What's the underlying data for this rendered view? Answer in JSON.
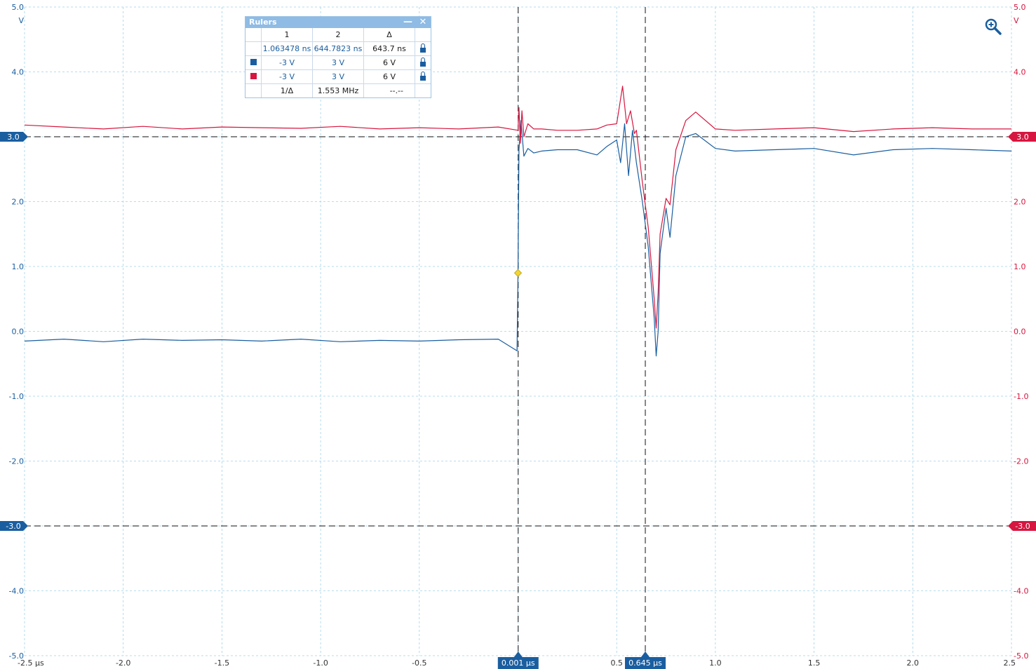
{
  "chart_data": {
    "type": "line",
    "title": "",
    "xlabel": "",
    "ylabel": "V",
    "ylabel_right": "V",
    "xlim": [
      -2.5,
      2.5
    ],
    "ylim": [
      -5.0,
      5.0
    ],
    "x_unit": "µs",
    "grid": true,
    "x_ticks": [
      "-2.5 µs",
      "-2.0",
      "-1.5",
      "-1.0",
      "-0.5",
      "0.5",
      "1.0",
      "1.5",
      "2.0",
      "2.5"
    ],
    "x_tick_values": [
      -2.5,
      -2.0,
      -1.5,
      -1.0,
      -0.5,
      0.5,
      1.0,
      1.5,
      2.0,
      2.5
    ],
    "y_ticks_left": [
      "5.0",
      "4.0",
      "3.0",
      "2.0",
      "1.0",
      "0.0",
      "-1.0",
      "-2.0",
      "-3.0",
      "-4.0",
      "-5.0"
    ],
    "y_ticks_right": [
      "5.0",
      "4.0",
      "3.0",
      "2.0",
      "1.0",
      "0.0",
      "-1.0",
      "-2.0",
      "-3.0",
      "-4.0",
      "-5.0"
    ],
    "y_tick_values": [
      5,
      4,
      3,
      2,
      1,
      0,
      -1,
      -2,
      -3,
      -4,
      -5
    ],
    "series": [
      {
        "color": "#1a5ea0",
        "x": [
          -2.5,
          -2.3,
          -2.1,
          -1.9,
          -1.7,
          -1.5,
          -1.3,
          -1.1,
          -0.9,
          -0.7,
          -0.5,
          -0.3,
          -0.1,
          -0.005,
          0.0,
          0.005,
          0.015,
          0.03,
          0.05,
          0.08,
          0.12,
          0.2,
          0.3,
          0.4,
          0.45,
          0.5,
          0.52,
          0.54,
          0.56,
          0.58,
          0.6,
          0.63,
          0.66,
          0.69,
          0.7,
          0.71,
          0.72,
          0.75,
          0.77,
          0.8,
          0.85,
          0.9,
          1.0,
          1.1,
          1.3,
          1.5,
          1.7,
          1.9,
          2.1,
          2.3,
          2.5
        ],
        "values": [
          -0.15,
          -0.12,
          -0.16,
          -0.12,
          -0.14,
          -0.13,
          -0.15,
          -0.12,
          -0.16,
          -0.14,
          -0.15,
          -0.13,
          -0.12,
          -0.3,
          0.9,
          2.8,
          3.25,
          2.7,
          2.82,
          2.75,
          2.78,
          2.8,
          2.8,
          2.72,
          2.85,
          2.95,
          2.6,
          3.2,
          2.4,
          3.1,
          2.6,
          2.0,
          1.3,
          0.2,
          -0.38,
          0.0,
          1.2,
          1.9,
          1.45,
          2.4,
          3.0,
          3.05,
          2.82,
          2.78,
          2.8,
          2.82,
          2.72,
          2.8,
          2.82,
          2.8,
          2.78
        ]
      },
      {
        "color": "#d6163f",
        "x": [
          -2.5,
          -2.3,
          -2.1,
          -1.9,
          -1.7,
          -1.5,
          -1.3,
          -1.1,
          -0.9,
          -0.7,
          -0.5,
          -0.3,
          -0.1,
          0.0,
          0.005,
          0.012,
          0.02,
          0.03,
          0.05,
          0.08,
          0.12,
          0.2,
          0.3,
          0.4,
          0.45,
          0.5,
          0.53,
          0.55,
          0.57,
          0.59,
          0.6,
          0.63,
          0.66,
          0.69,
          0.7,
          0.71,
          0.72,
          0.75,
          0.77,
          0.8,
          0.85,
          0.9,
          1.0,
          1.1,
          1.3,
          1.5,
          1.7,
          1.9,
          2.1,
          2.3,
          2.5
        ],
        "values": [
          3.18,
          3.15,
          3.12,
          3.16,
          3.12,
          3.15,
          3.14,
          3.13,
          3.16,
          3.12,
          3.14,
          3.12,
          3.15,
          3.1,
          3.45,
          2.9,
          3.4,
          3.0,
          3.2,
          3.12,
          3.12,
          3.1,
          3.1,
          3.12,
          3.18,
          3.2,
          3.78,
          3.2,
          3.4,
          3.05,
          3.1,
          2.3,
          1.6,
          0.5,
          0.05,
          0.6,
          1.5,
          2.05,
          1.95,
          2.8,
          3.25,
          3.38,
          3.12,
          3.1,
          3.12,
          3.14,
          3.08,
          3.12,
          3.14,
          3.12,
          3.12
        ]
      }
    ],
    "h_markers": [
      {
        "value": 3.0,
        "label_left": "3.0",
        "label_right": "3.0"
      },
      {
        "value": -3.0,
        "label_left": "-3.0",
        "label_right": "-3.0"
      }
    ],
    "v_markers": [
      {
        "value": 0.001,
        "label": "0.001 µs"
      },
      {
        "value": 0.645,
        "label": "0.645 µs"
      }
    ],
    "trigger": {
      "x": 0.0,
      "y": 0.9,
      "color": "#f3d531"
    }
  },
  "colors": {
    "ch1": "#1a5ea0",
    "ch2": "#d6163f",
    "grid": "#9fd3e8",
    "marker_bg": "#1a5ea0"
  },
  "rulers_panel": {
    "title": "Rulers",
    "headers": [
      "1",
      "2",
      "Δ"
    ],
    "time_row": [
      "1.063478 ns",
      "644.7823 ns",
      "643.7 ns"
    ],
    "ch1_row": [
      "-3 V",
      "3 V",
      "6 V"
    ],
    "ch2_row": [
      "-3 V",
      "3 V",
      "6 V"
    ],
    "freq_row": [
      "1/Δ",
      "1.553 MHz",
      "--.--"
    ],
    "minimize_glyph": "—",
    "close_glyph": "✕"
  },
  "zoom_icon": "zoom-in-icon"
}
